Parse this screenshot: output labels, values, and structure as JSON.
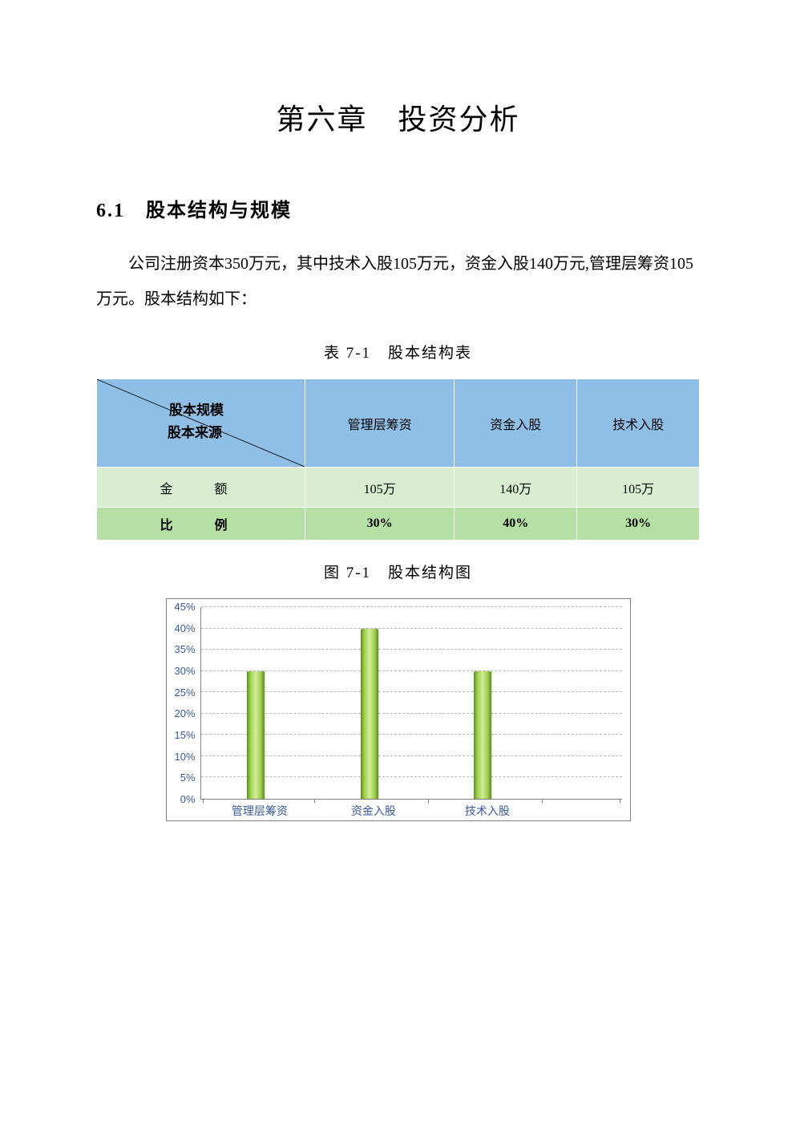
{
  "chapter_title": "第六章　投资分析",
  "section_title": "6.1　股本结构与规模",
  "paragraph": "公司注册资本350万元，其中技术入股105万元，资金入股140万元,管理层筹资105万元。股本结构如下：",
  "table_caption": "表 7-1　股本结构表",
  "figure_caption": "图 7-1　股本结构图",
  "table": {
    "diag_top": "股本规模",
    "diag_bot": "股本来源",
    "columns": [
      "管理层筹资",
      "资金入股",
      "技术入股"
    ],
    "rows": [
      {
        "label": "金　额",
        "values": [
          "105万",
          "140万",
          "105万"
        ]
      },
      {
        "label": "比　例",
        "values": [
          "30%",
          "40%",
          "30%"
        ]
      }
    ],
    "header_bg": "#8fbfe6",
    "amount_bg": "#d9eed0",
    "ratio_bg": "#b6dfa3",
    "border_color": "#ffffff"
  },
  "chart": {
    "type": "bar",
    "categories": [
      "管理层筹资",
      "资金入股",
      "技术入股"
    ],
    "values": [
      30,
      40,
      30
    ],
    "y_max": 45,
    "y_step": 5,
    "y_ticks": [
      "0%",
      "5%",
      "10%",
      "15%",
      "20%",
      "25%",
      "30%",
      "35%",
      "40%",
      "45%"
    ],
    "bar_positions_pct": [
      13,
      40,
      67
    ],
    "xtick_positions_pct": [
      0.5,
      27,
      54,
      81,
      99.5
    ],
    "bar_gradient": [
      "#5c8a1f",
      "#9cce4a",
      "#d4ed9a",
      "#9cce4a",
      "#5c8a1f"
    ],
    "axis_color": "#808080",
    "grid_color": "#808080",
    "label_color": "#3a5a9a",
    "border_color": "#808080",
    "background": "#ffffff",
    "label_fontsize": 13
  }
}
